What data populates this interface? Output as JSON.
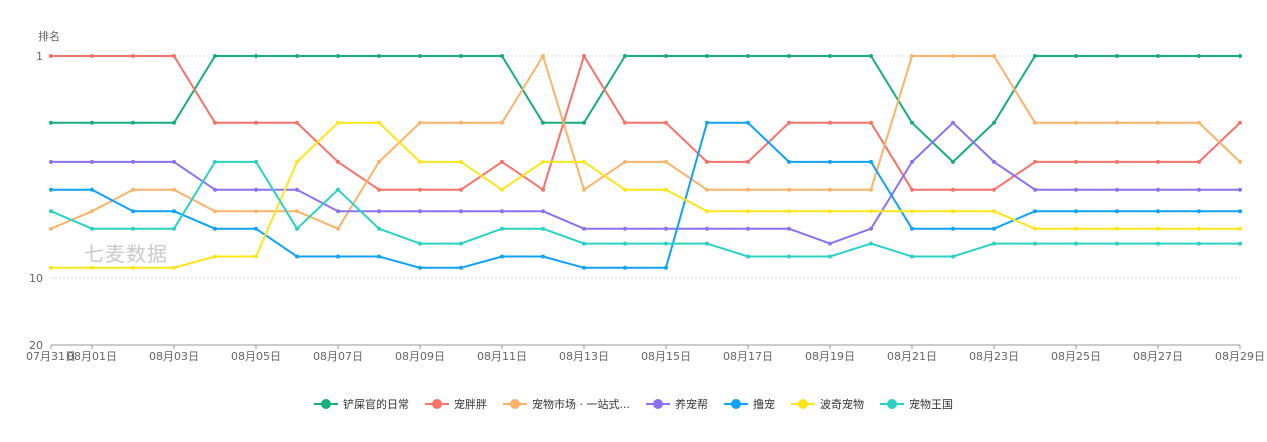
{
  "watermark": "七麦数据",
  "chart_data": {
    "type": "line",
    "ylabel": "排名",
    "y_scale": "log",
    "y_ticks": [
      1,
      10,
      20
    ],
    "y_inverted": true,
    "ylim": [
      1,
      20
    ],
    "categories": [
      "07月31日",
      "08月01日",
      "08月02日",
      "08月03日",
      "08月04日",
      "08月05日",
      "08月06日",
      "08月07日",
      "08月08日",
      "08月09日",
      "08月10日",
      "08月11日",
      "08月12日",
      "08月13日",
      "08月14日",
      "08月15日",
      "08月16日",
      "08月17日",
      "08月18日",
      "08月19日",
      "08月20日",
      "08月21日",
      "08月22日",
      "08月23日",
      "08月24日",
      "08月25日",
      "08月26日",
      "08月27日",
      "08月28日",
      "08月29日"
    ],
    "x_tick_labels": [
      "07月31日",
      "08月01日",
      "08月03日",
      "08月05日",
      "08月07日",
      "08月09日",
      "08月11日",
      "08月13日",
      "08月15日",
      "08月17日",
      "08月19日",
      "08月21日",
      "08月23日",
      "08月25日",
      "08月27日",
      "08月29日"
    ],
    "grid": "horizontal dashed",
    "legend_position": "bottom-center",
    "series": [
      {
        "name": "铲屎官的日常",
        "color": "#1aae7c",
        "values": [
          2,
          2,
          2,
          2,
          1,
          1,
          1,
          1,
          1,
          1,
          1,
          1,
          2,
          2,
          1,
          1,
          1,
          1,
          1,
          1,
          1,
          2,
          3,
          2,
          1,
          1,
          1,
          1,
          1,
          1
        ]
      },
      {
        "name": "宠胖胖",
        "color": "#f4736b",
        "values": [
          1,
          1,
          1,
          1,
          2,
          2,
          2,
          3,
          4,
          4,
          4,
          3,
          4,
          1,
          2,
          2,
          3,
          3,
          2,
          2,
          2,
          4,
          4,
          4,
          3,
          3,
          3,
          3,
          3,
          2
        ]
      },
      {
        "name": "宠物市场 · 一站式...",
        "color": "#f9b36b",
        "values": [
          6,
          5,
          4,
          4,
          5,
          5,
          5,
          6,
          3,
          2,
          2,
          2,
          1,
          4,
          3,
          3,
          4,
          4,
          4,
          4,
          4,
          1,
          1,
          1,
          2,
          2,
          2,
          2,
          2,
          3
        ]
      },
      {
        "name": "养宠帮",
        "color": "#8b73ec",
        "values": [
          3,
          3,
          3,
          3,
          4,
          4,
          4,
          5,
          5,
          5,
          5,
          5,
          5,
          6,
          6,
          6,
          6,
          6,
          6,
          7,
          6,
          3,
          2,
          3,
          4,
          4,
          4,
          4,
          4,
          4
        ]
      },
      {
        "name": "撸宠",
        "color": "#11a2f3",
        "values": [
          4,
          4,
          5,
          5,
          6,
          6,
          8,
          8,
          8,
          9,
          9,
          8,
          8,
          9,
          9,
          9,
          2,
          2,
          3,
          3,
          3,
          6,
          6,
          6,
          5,
          5,
          5,
          5,
          5,
          5
        ]
      },
      {
        "name": "波奇宠物",
        "color": "#fde51b",
        "values": [
          9,
          9,
          9,
          9,
          8,
          8,
          3,
          2,
          2,
          3,
          3,
          4,
          3,
          3,
          4,
          4,
          5,
          5,
          5,
          5,
          5,
          5,
          5,
          5,
          6,
          6,
          6,
          6,
          6,
          6
        ]
      },
      {
        "name": "宠物王国",
        "color": "#2bd1c1",
        "values": [
          5,
          6,
          6,
          6,
          3,
          3,
          6,
          4,
          6,
          7,
          7,
          6,
          6,
          7,
          7,
          7,
          7,
          8,
          8,
          8,
          7,
          8,
          8,
          7,
          7,
          7,
          7,
          7,
          7,
          7
        ]
      }
    ]
  }
}
